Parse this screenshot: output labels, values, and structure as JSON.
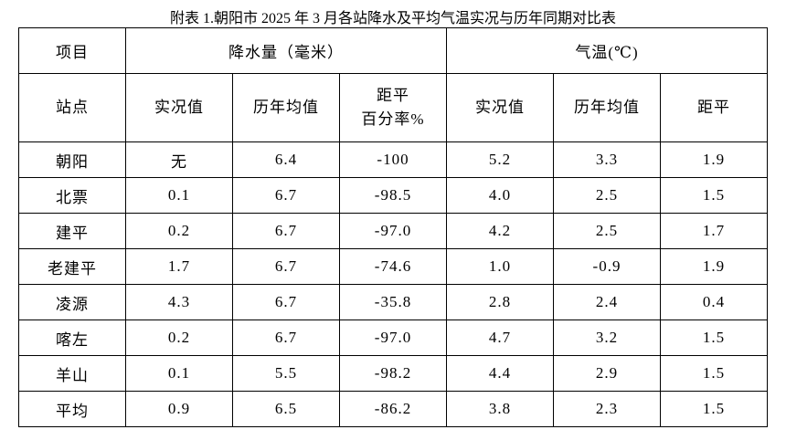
{
  "title": "附表 1.朝阳市 2025 年 3 月各站降水及平均气温实况与历年同期对比表",
  "table": {
    "header_top": [
      "项目",
      "降水量（毫米）",
      "气温(℃)"
    ],
    "header_sub": [
      "站点",
      "实况值",
      "历年均值",
      [
        "距平",
        "百分率%"
      ],
      "实况值",
      "历年均值",
      "距平"
    ],
    "rows": [
      [
        "朝阳",
        "无",
        "6.4",
        "-100",
        "5.2",
        "3.3",
        "1.9"
      ],
      [
        "北票",
        "0.1",
        "6.7",
        "-98.5",
        "4.0",
        "2.5",
        "1.5"
      ],
      [
        "建平",
        "0.2",
        "6.7",
        "-97.0",
        "4.2",
        "2.5",
        "1.7"
      ],
      [
        "老建平",
        "1.7",
        "6.7",
        "-74.6",
        "1.0",
        "-0.9",
        "1.9"
      ],
      [
        "凌源",
        "4.3",
        "6.7",
        "-35.8",
        "2.8",
        "2.4",
        "0.4"
      ],
      [
        "喀左",
        "0.2",
        "6.7",
        "-97.0",
        "4.7",
        "3.2",
        "1.5"
      ],
      [
        "羊山",
        "0.1",
        "5.5",
        "-98.2",
        "4.4",
        "2.9",
        "1.5"
      ],
      [
        "平均",
        "0.9",
        "6.5",
        "-86.2",
        "3.8",
        "2.3",
        "1.5"
      ]
    ]
  }
}
